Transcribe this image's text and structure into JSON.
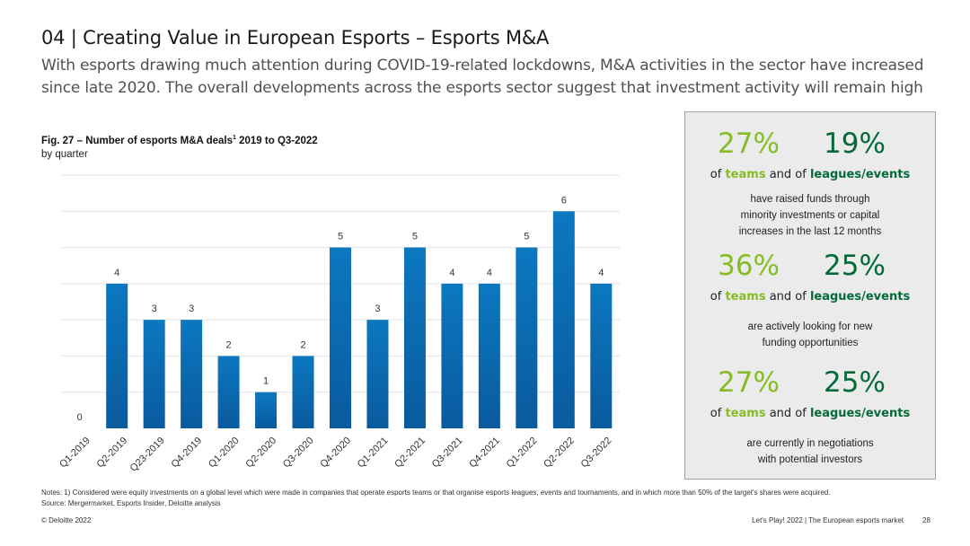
{
  "header": {
    "title": "04 | Creating Value in European Esports – Esports M&A",
    "subtitle": "With esports drawing much attention during COVID-19-related lockdowns, M&A activities in the sector have increased since late 2020. The overall developments across the esports sector suggest that investment activity will remain high"
  },
  "figure": {
    "title_main": "Fig. 27 – Number of esports M&A deals",
    "title_sup": "1",
    "title_tail": " 2019 to Q3-2022",
    "subtitle": "by quarter"
  },
  "chart_data": {
    "type": "bar",
    "categories": [
      "Q1-2019",
      "Q2-2019",
      "Q23-2019",
      "Q4-2019",
      "Q1-2020",
      "Q2-2020",
      "Q3-2020",
      "Q4-2020",
      "Q1-2021",
      "Q2-2021",
      "Q3-2021",
      "Q4-2021",
      "Q1-2022",
      "Q2-2022",
      "Q3-2022"
    ],
    "values": [
      0,
      4,
      3,
      3,
      2,
      1,
      2,
      5,
      3,
      5,
      4,
      4,
      5,
      6,
      4
    ],
    "ylim": [
      0,
      7
    ],
    "grid": true,
    "bar_color_top": "#0b78c0",
    "bar_color_bottom": "#0a5a9e"
  },
  "panel": {
    "stats": [
      {
        "teams_pct": "27%",
        "leagues_pct": "19%",
        "of": "of ",
        "teams": "teams",
        "and_of": " and of ",
        "leagues": "leagues/events",
        "desc": [
          "have raised funds through",
          "minority investments or capital",
          "increases in the last 12 months"
        ]
      },
      {
        "teams_pct": "36%",
        "leagues_pct": "25%",
        "of": "of ",
        "teams": "teams",
        "and_of": " and of ",
        "leagues": "leagues/events",
        "desc": [
          "are actively looking for new",
          "funding opportunities"
        ]
      },
      {
        "teams_pct": "27%",
        "leagues_pct": "25%",
        "of": "of ",
        "teams": "teams",
        "and_of": " and of ",
        "leagues": "leagues/events",
        "desc": [
          "are currently in negotiations",
          "with potential investors"
        ]
      }
    ],
    "teams_color": "#86bc25",
    "leagues_color": "#046a38"
  },
  "notes": "Notes: 1) Considered were equity investments on a global level which were made in companies that operate esports teams or that organise esports leagues, events and tournaments, and in which more than 50% of the target's shares were acquired.",
  "source": "Source: Mergermarket, Esports Insider, Deloitte analysis",
  "footer": {
    "copyright": "© Deloitte 2022",
    "report": "Let's Play! 2022 | The European esports market",
    "page": "28"
  }
}
